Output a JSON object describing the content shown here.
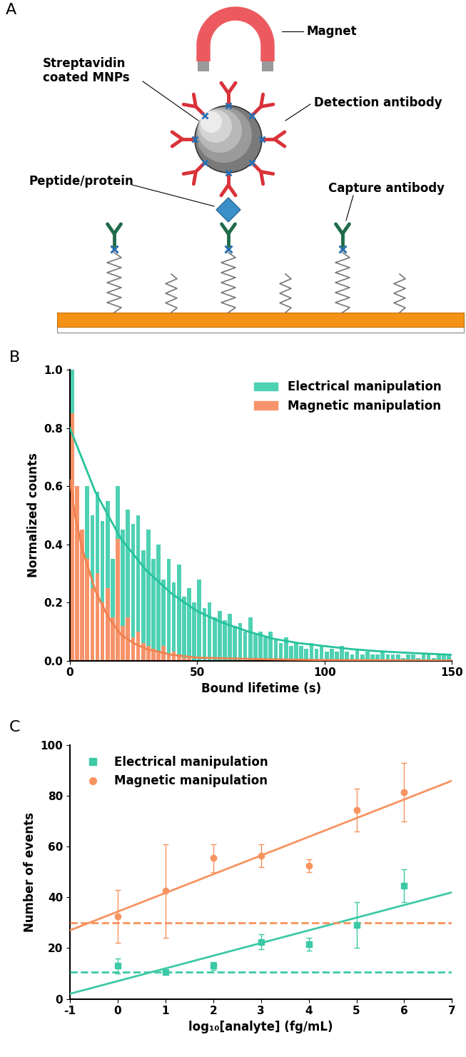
{
  "diagram": {
    "panel_label": "A",
    "labels": {
      "magnet": "Magnet",
      "mnp": "Streptavidin\ncoated MNPs",
      "detection": "Detection antibody",
      "peptide": "Peptide/protein",
      "capture": "Capture antibody"
    }
  },
  "chart_data": [
    {
      "type": "histogram",
      "panel_label": "B",
      "x_label": "Bound lifetime (s)",
      "y_label": "Normalized counts",
      "xlim": [
        0,
        150
      ],
      "xticks": [
        0,
        50,
        100,
        150
      ],
      "ylim": [
        0.0,
        1.0
      ],
      "yticks": [
        0.0,
        0.2,
        0.4,
        0.6,
        0.8,
        1.0
      ],
      "legend": "upper right",
      "bins": [
        0,
        2,
        4,
        6,
        8,
        10,
        12,
        14,
        16,
        18,
        20,
        22,
        24,
        26,
        28,
        30,
        32,
        34,
        36,
        38,
        40,
        42,
        44,
        46,
        48,
        50,
        52,
        54,
        56,
        58,
        60,
        62,
        64,
        66,
        68,
        70,
        72,
        74,
        76,
        78,
        80,
        82,
        84,
        86,
        88,
        90,
        92,
        94,
        96,
        98,
        100,
        102,
        104,
        106,
        108,
        110,
        112,
        114,
        116,
        118,
        120,
        122,
        124,
        126,
        128,
        130,
        132,
        134,
        136,
        138,
        140,
        142,
        144,
        146,
        148,
        150
      ],
      "series": [
        {
          "name": "Electrical manipulation",
          "color": "#4fd1b3",
          "values": [
            1.0,
            0.55,
            0.45,
            0.6,
            0.5,
            0.58,
            0.48,
            0.55,
            0.35,
            0.6,
            0.45,
            0.52,
            0.47,
            0.5,
            0.38,
            0.45,
            0.35,
            0.4,
            0.28,
            0.35,
            0.27,
            0.33,
            0.22,
            0.25,
            0.2,
            0.28,
            0.18,
            0.2,
            0.15,
            0.17,
            0.14,
            0.16,
            0.12,
            0.13,
            0.1,
            0.15,
            0.09,
            0.1,
            0.08,
            0.1,
            0.07,
            0.06,
            0.08,
            0.05,
            0.06,
            0.05,
            0.04,
            0.06,
            0.04,
            0.05,
            0.03,
            0.04,
            0.03,
            0.05,
            0.03,
            0.02,
            0.04,
            0.02,
            0.03,
            0.02,
            0.02,
            0.03,
            0.02,
            0.02,
            0.02,
            0.01,
            0.02,
            0.02,
            0.01,
            0.02,
            0.02,
            0.01,
            0.02,
            0.02,
            0.02
          ]
        },
        {
          "name": "Magnetic manipulation",
          "color": "#f7936a",
          "values": [
            0.85,
            0.6,
            0.45,
            0.35,
            0.25,
            0.3,
            0.2,
            0.25,
            0.15,
            0.42,
            0.12,
            0.15,
            0.08,
            0.1,
            0.06,
            0.05,
            0.04,
            0.03,
            0.05,
            0.02,
            0.03,
            0.02,
            0.01,
            0.01,
            0,
            0,
            0,
            0,
            0,
            0,
            0,
            0,
            0,
            0,
            0,
            0,
            0,
            0,
            0,
            0,
            0,
            0,
            0,
            0,
            0,
            0,
            0,
            0,
            0,
            0,
            0,
            0,
            0,
            0,
            0,
            0,
            0,
            0,
            0,
            0,
            0,
            0,
            0,
            0,
            0,
            0,
            0,
            0,
            0,
            0,
            0,
            0,
            0,
            0,
            0
          ]
        },
        {
          "type": "line",
          "color": "#26c29c",
          "x": [
            0,
            10,
            20,
            30,
            40,
            50,
            60,
            70,
            80,
            90,
            100,
            110,
            120,
            130,
            140,
            150
          ],
          "values": [
            0.8,
            0.58,
            0.42,
            0.31,
            0.23,
            0.17,
            0.13,
            0.1,
            0.075,
            0.06,
            0.05,
            0.04,
            0.033,
            0.028,
            0.024,
            0.02
          ]
        },
        {
          "type": "line",
          "color": "#f2814f",
          "x": [
            0,
            2,
            5,
            10,
            15,
            20,
            25,
            30,
            40,
            50,
            75,
            100,
            150
          ],
          "values": [
            0.62,
            0.5,
            0.38,
            0.24,
            0.15,
            0.09,
            0.06,
            0.04,
            0.02,
            0.01,
            0.005,
            0.002,
            0.0
          ]
        }
      ]
    },
    {
      "type": "scatter",
      "panel_label": "C",
      "x_label": "log₁₀[analyte] (fg/mL)",
      "y_label": "Number of events",
      "xlim": [
        -1,
        7
      ],
      "xticks": [
        -1,
        0,
        1,
        2,
        3,
        4,
        5,
        6,
        7
      ],
      "ylim": [
        0,
        100
      ],
      "yticks": [
        0,
        20,
        40,
        60,
        80,
        100
      ],
      "legend": "upper left",
      "series": [
        {
          "name": "Electrical manipulation",
          "color": "#3cc9a6",
          "marker": "square",
          "x": [
            0,
            1,
            2,
            3,
            4,
            5,
            6
          ],
          "values": [
            13,
            10.5,
            13,
            22.5,
            21.5,
            29,
            44.5
          ],
          "errors": [
            3,
            0.5,
            1.5,
            3,
            2.5,
            9,
            6.5
          ]
        },
        {
          "name": "Magnetic manipulation",
          "color": "#f7935f",
          "marker": "circle",
          "x": [
            0,
            1,
            2,
            3,
            4,
            5,
            6
          ],
          "values": [
            32.5,
            42.5,
            55.5,
            56.5,
            52.5,
            74.5,
            81.5
          ],
          "errors": [
            10.5,
            18.5,
            5.5,
            4.5,
            2.5,
            8.5,
            11.5
          ]
        },
        {
          "type": "line",
          "color": "#3cc9a6",
          "line_style": "solid",
          "x": [
            -1,
            7
          ],
          "values": [
            2,
            42
          ]
        },
        {
          "type": "line",
          "color": "#f7935f",
          "line_style": "solid",
          "x": [
            -1,
            7
          ],
          "values": [
            27,
            86
          ]
        },
        {
          "type": "line",
          "color": "#3cc9a6",
          "line_style": "dashed",
          "x": [
            -1,
            7
          ],
          "values": [
            10.5,
            10.5
          ]
        },
        {
          "type": "line",
          "color": "#f7935f",
          "line_style": "dashed",
          "x": [
            -1,
            7
          ],
          "values": [
            30,
            30
          ]
        }
      ]
    }
  ]
}
